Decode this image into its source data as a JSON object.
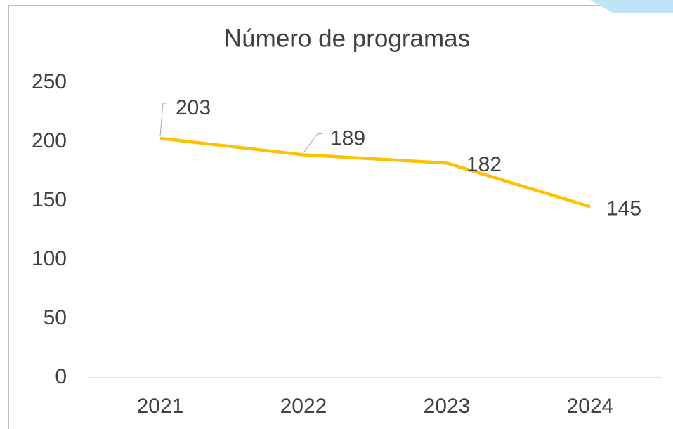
{
  "chart_data": {
    "type": "line",
    "title": "Número de programas",
    "categories": [
      "2021",
      "2022",
      "2023",
      "2024"
    ],
    "series": [
      {
        "name": "Número de programas",
        "color": "#ffc000",
        "values": [
          203,
          189,
          182,
          145
        ]
      }
    ],
    "ylim": [
      0,
      250
    ],
    "yticks": [
      0,
      50,
      100,
      150,
      200,
      250
    ],
    "grid": false
  }
}
